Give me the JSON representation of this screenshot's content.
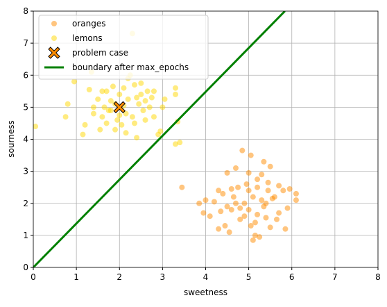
{
  "chart_data": {
    "type": "scatter",
    "x_label": "sweetness",
    "y_label": "sourness",
    "xlim": [
      0,
      8
    ],
    "ylim": [
      0,
      8
    ],
    "xticks": [
      0,
      1,
      2,
      3,
      4,
      5,
      6,
      7,
      8
    ],
    "yticks": [
      0,
      1,
      2,
      3,
      4,
      5,
      6,
      7,
      8
    ],
    "grid": true,
    "legend": "upper left",
    "series": [
      {
        "name": "oranges",
        "type": "scatter",
        "marker": "o",
        "color": "#ff8c00",
        "alpha": 0.5,
        "x": [
          3.45,
          3.85,
          3.95,
          4.0,
          4.1,
          4.2,
          4.3,
          4.3,
          4.35,
          4.4,
          4.45,
          4.5,
          4.55,
          4.6,
          4.65,
          4.7,
          4.75,
          4.8,
          4.85,
          4.9,
          4.95,
          5.0,
          5.0,
          5.05,
          5.05,
          5.1,
          5.1,
          5.15,
          5.2,
          5.2,
          5.25,
          5.3,
          5.35,
          5.35,
          5.4,
          5.45,
          5.5,
          5.5,
          5.55,
          5.6,
          5.65,
          5.7,
          5.8,
          5.85,
          5.9,
          5.95,
          6.1,
          6.1,
          4.6,
          4.8,
          5.0,
          5.2,
          5.4,
          4.9,
          5.3,
          4.5,
          5.7,
          5.15,
          4.7,
          5.45
        ],
        "y": [
          2.5,
          2.0,
          1.7,
          2.1,
          1.6,
          2.05,
          2.4,
          1.2,
          1.75,
          2.3,
          1.3,
          2.95,
          1.1,
          1.8,
          2.2,
          3.1,
          2.5,
          1.5,
          3.65,
          2.0,
          2.6,
          2.95,
          1.8,
          3.5,
          1.3,
          2.2,
          0.85,
          1.0,
          2.5,
          1.65,
          0.95,
          2.9,
          1.9,
          3.3,
          2.0,
          2.65,
          3.15,
          1.25,
          2.15,
          2.2,
          1.5,
          2.55,
          2.4,
          1.2,
          1.85,
          2.45,
          2.1,
          2.3,
          2.45,
          1.85,
          2.4,
          2.75,
          1.55,
          1.6,
          2.1,
          1.9,
          1.7,
          1.4,
          2.0,
          2.4
        ]
      },
      {
        "name": "lemons",
        "type": "scatter",
        "marker": "o",
        "color": "#ffd700",
        "alpha": 0.5,
        "x": [
          0.05,
          0.75,
          0.8,
          0.95,
          1.15,
          1.2,
          1.3,
          1.35,
          1.4,
          1.5,
          1.55,
          1.6,
          1.65,
          1.7,
          1.75,
          1.8,
          1.85,
          1.9,
          1.95,
          2.0,
          2.05,
          2.1,
          2.15,
          2.2,
          2.25,
          2.3,
          2.35,
          2.4,
          2.45,
          2.5,
          2.55,
          2.6,
          2.65,
          2.7,
          2.75,
          2.8,
          2.9,
          2.95,
          3.0,
          3.05,
          3.3,
          3.3,
          3.3,
          3.35,
          3.4,
          1.6,
          1.8,
          2.1,
          2.3,
          2.2,
          1.9,
          2.0,
          2.4,
          2.6,
          1.7,
          2.15,
          2.5,
          2.8,
          1.4,
          2.35
        ],
        "y": [
          4.4,
          4.7,
          5.1,
          5.8,
          4.15,
          4.45,
          5.55,
          6.1,
          4.8,
          5.25,
          4.3,
          4.7,
          5.0,
          5.5,
          4.9,
          5.2,
          5.65,
          4.3,
          4.6,
          5.4,
          4.45,
          5.6,
          4.8,
          5.9,
          6.0,
          7.3,
          5.7,
          4.05,
          5.1,
          5.4,
          4.9,
          4.6,
          5.5,
          5.0,
          5.3,
          4.7,
          4.15,
          4.25,
          5.0,
          5.25,
          5.4,
          5.6,
          3.85,
          4.55,
          3.9,
          5.5,
          4.9,
          5.05,
          4.7,
          5.25,
          5.1,
          4.75,
          5.3,
          5.2,
          4.5,
          4.2,
          5.75,
          5.5,
          5.0,
          4.5
        ]
      },
      {
        "name": "problem case",
        "type": "scatter",
        "marker": "X",
        "color": "#ff8c00",
        "edge_color": "#000000",
        "x": [
          2
        ],
        "y": [
          5
        ]
      },
      {
        "name": "boundary after max_epochs",
        "type": "line",
        "color": "#008000",
        "x": [
          0,
          5.84
        ],
        "y": [
          0,
          8
        ]
      }
    ]
  }
}
